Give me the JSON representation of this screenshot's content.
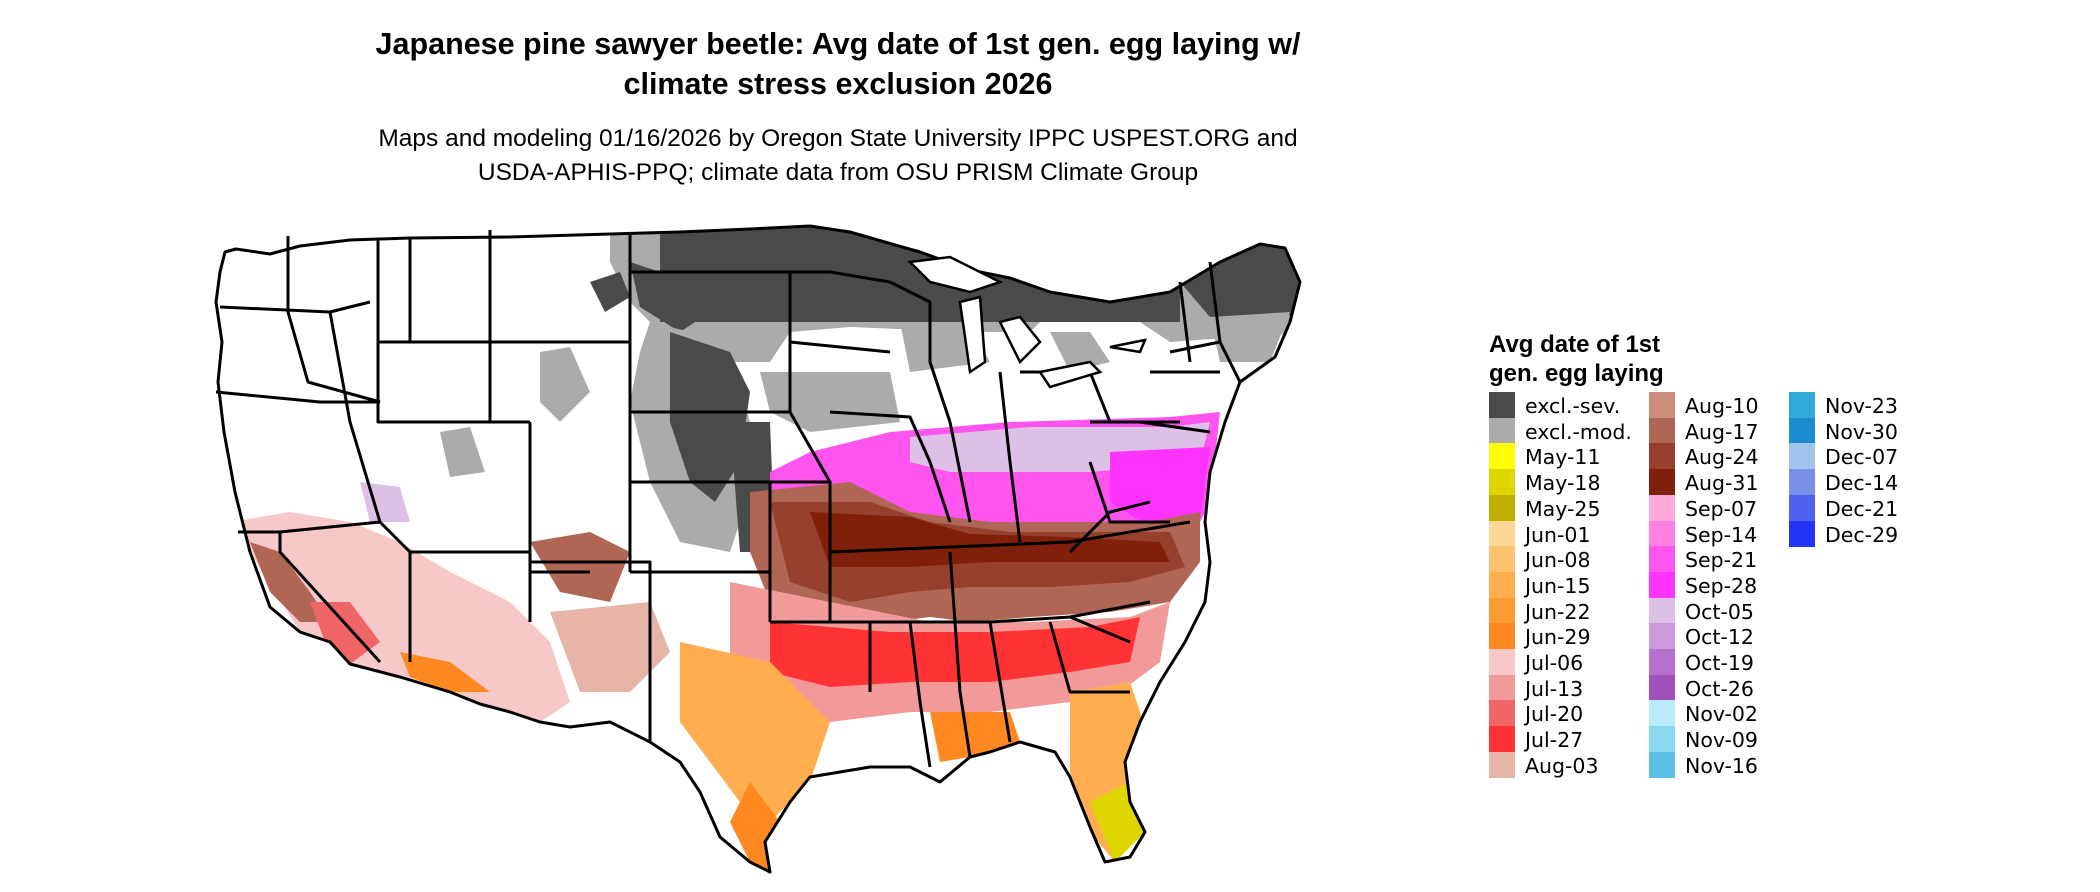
{
  "title": {
    "line1": "Japanese pine sawyer beetle: Avg date of 1st gen. egg laying w/",
    "line2": "climate stress exclusion 2026"
  },
  "subtitle": {
    "line1": "Maps and modeling 01/16/2026 by Oregon State University IPPC USPEST.ORG and",
    "line2": "USDA-APHIS-PPQ; climate data from OSU PRISM Climate Group"
  },
  "legend": {
    "title_line1": "Avg date of 1st",
    "title_line2": "gen. egg laying",
    "columns": [
      [
        {
          "label": "excl.-sev.",
          "color": "#4a4a4a"
        },
        {
          "label": "excl.-mod.",
          "color": "#ababab"
        },
        {
          "label": "May-11",
          "color": "#ffff00"
        },
        {
          "label": "May-18",
          "color": "#dfd600"
        },
        {
          "label": "May-25",
          "color": "#bfb000"
        },
        {
          "label": "Jun-01",
          "color": "#ffd899"
        },
        {
          "label": "Jun-08",
          "color": "#ffc370"
        },
        {
          "label": "Jun-15",
          "color": "#ffad4f"
        },
        {
          "label": "Jun-22",
          "color": "#ff9b35"
        },
        {
          "label": "Jun-29",
          "color": "#ff8820"
        },
        {
          "label": "Jul-06",
          "color": "#f6c8c8"
        },
        {
          "label": "Jul-13",
          "color": "#f29a9a"
        },
        {
          "label": "Jul-20",
          "color": "#f06666"
        },
        {
          "label": "Jul-27",
          "color": "#ff3333"
        },
        {
          "label": "Aug-03",
          "color": "#e6b5a8"
        }
      ],
      [
        {
          "label": "Aug-10",
          "color": "#cc8c7d"
        },
        {
          "label": "Aug-17",
          "color": "#b06655"
        },
        {
          "label": "Aug-24",
          "color": "#98402e"
        },
        {
          "label": "Aug-31",
          "color": "#80200a"
        },
        {
          "label": "Sep-07",
          "color": "#ffaadd"
        },
        {
          "label": "Sep-14",
          "color": "#ff80e0"
        },
        {
          "label": "Sep-21",
          "color": "#ff55ee"
        },
        {
          "label": "Sep-28",
          "color": "#ff33ff"
        },
        {
          "label": "Oct-05",
          "color": "#dcc0e6"
        },
        {
          "label": "Oct-12",
          "color": "#cc99dd"
        },
        {
          "label": "Oct-19",
          "color": "#b870cf"
        },
        {
          "label": "Oct-26",
          "color": "#a050bb"
        },
        {
          "label": "Nov-02",
          "color": "#b8ecfa"
        },
        {
          "label": "Nov-09",
          "color": "#8ad8f0"
        },
        {
          "label": "Nov-16",
          "color": "#5cc0e6"
        }
      ],
      [
        {
          "label": "Nov-23",
          "color": "#30a8dc"
        },
        {
          "label": "Nov-30",
          "color": "#1a8cd0"
        },
        {
          "label": "Dec-07",
          "color": "#a0c4ec"
        },
        {
          "label": "Dec-14",
          "color": "#7890e8"
        },
        {
          "label": "Dec-21",
          "color": "#5060ee"
        },
        {
          "label": "Dec-29",
          "color": "#2233f5"
        }
      ]
    ]
  }
}
